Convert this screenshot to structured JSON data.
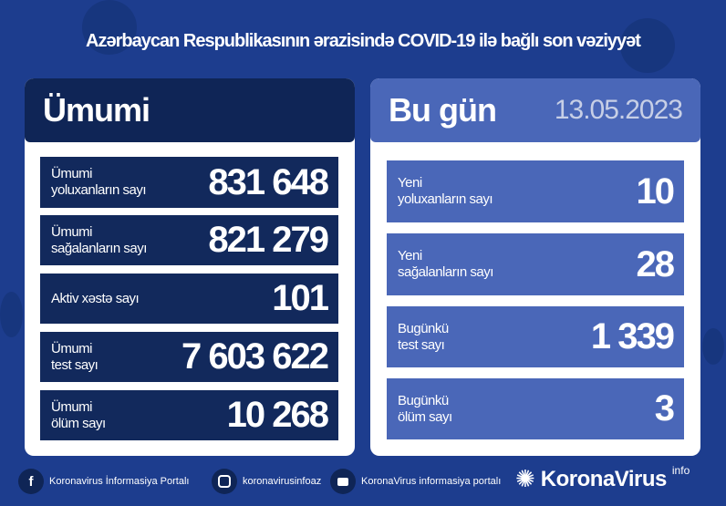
{
  "title": "Azərbaycan Respublikasının ərazisində COVID-19 ilə bağlı son vəziyyət",
  "total": {
    "header": "Ümumi",
    "rows": [
      {
        "label1": "Ümumi",
        "label2": "yoluxanların sayı",
        "value": "831 648"
      },
      {
        "label1": "Ümumi",
        "label2": "sağalanların sayı",
        "value": "821 279"
      },
      {
        "label1": "Aktiv xəstə sayı",
        "label2": "",
        "value": "101"
      },
      {
        "label1": "Ümumi",
        "label2": "test sayı",
        "value": "7 603 622"
      },
      {
        "label1": "Ümumi",
        "label2": "ölüm sayı",
        "value": "10 268"
      }
    ]
  },
  "today": {
    "header": "Bu gün",
    "date": "13.05.2023",
    "rows": [
      {
        "label1": "Yeni",
        "label2": "yoluxanların sayı",
        "value": "10"
      },
      {
        "label1": "Yeni",
        "label2": "sağalanların sayı",
        "value": "28"
      },
      {
        "label1": "Bugünkü",
        "label2": "test sayı",
        "value": "1 339"
      },
      {
        "label1": "Bugünkü",
        "label2": "ölüm sayı",
        "value": "3"
      }
    ]
  },
  "footer": {
    "facebook": "Koronavirus İnformasiya Portalı",
    "instagram": "koronavirusinfoaz",
    "youtube": "KoronaVirus informasiya portalı",
    "logo": "KoronaVirus",
    "logo_sup": "info"
  },
  "colors": {
    "background": "#1d3d8e",
    "navy": "#0f2556",
    "blue": "#4a67b8"
  }
}
